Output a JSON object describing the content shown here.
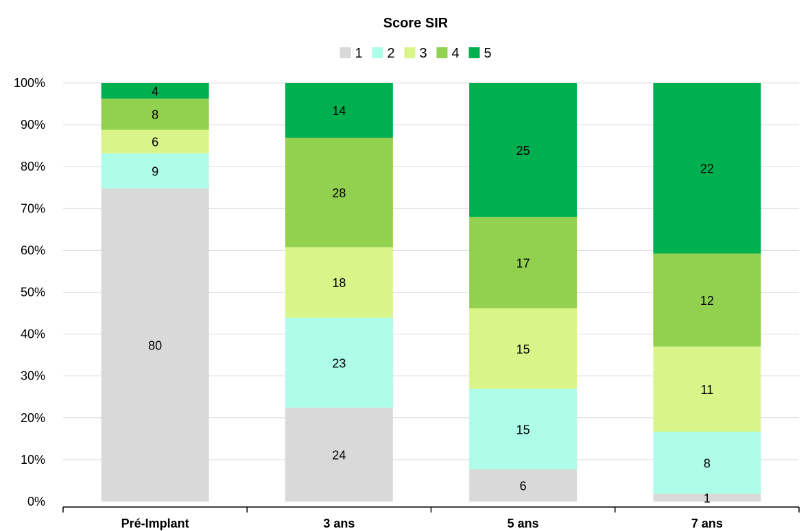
{
  "chart_data": {
    "type": "bar",
    "stacked": "percent",
    "title": "Score SIR",
    "categories": [
      "Pré-Implant",
      "3 ans",
      "5 ans",
      "7 ans"
    ],
    "series": [
      {
        "name": "1",
        "color": "#d9d9d9",
        "values": [
          80,
          24,
          6,
          1
        ]
      },
      {
        "name": "2",
        "color": "#adfde8",
        "values": [
          9,
          23,
          15,
          8
        ]
      },
      {
        "name": "3",
        "color": "#d9f58a",
        "values": [
          6,
          18,
          15,
          11
        ]
      },
      {
        "name": "4",
        "color": "#92d050",
        "values": [
          8,
          28,
          17,
          12
        ]
      },
      {
        "name": "5",
        "color": "#00b050",
        "values": [
          4,
          14,
          25,
          22
        ]
      }
    ],
    "y_ticks": [
      "0%",
      "10%",
      "20%",
      "30%",
      "40%",
      "50%",
      "60%",
      "70%",
      "80%",
      "90%",
      "100%"
    ],
    "ylim": [
      0,
      100
    ],
    "grid": true,
    "legend_position": "top",
    "data_labels": true
  }
}
